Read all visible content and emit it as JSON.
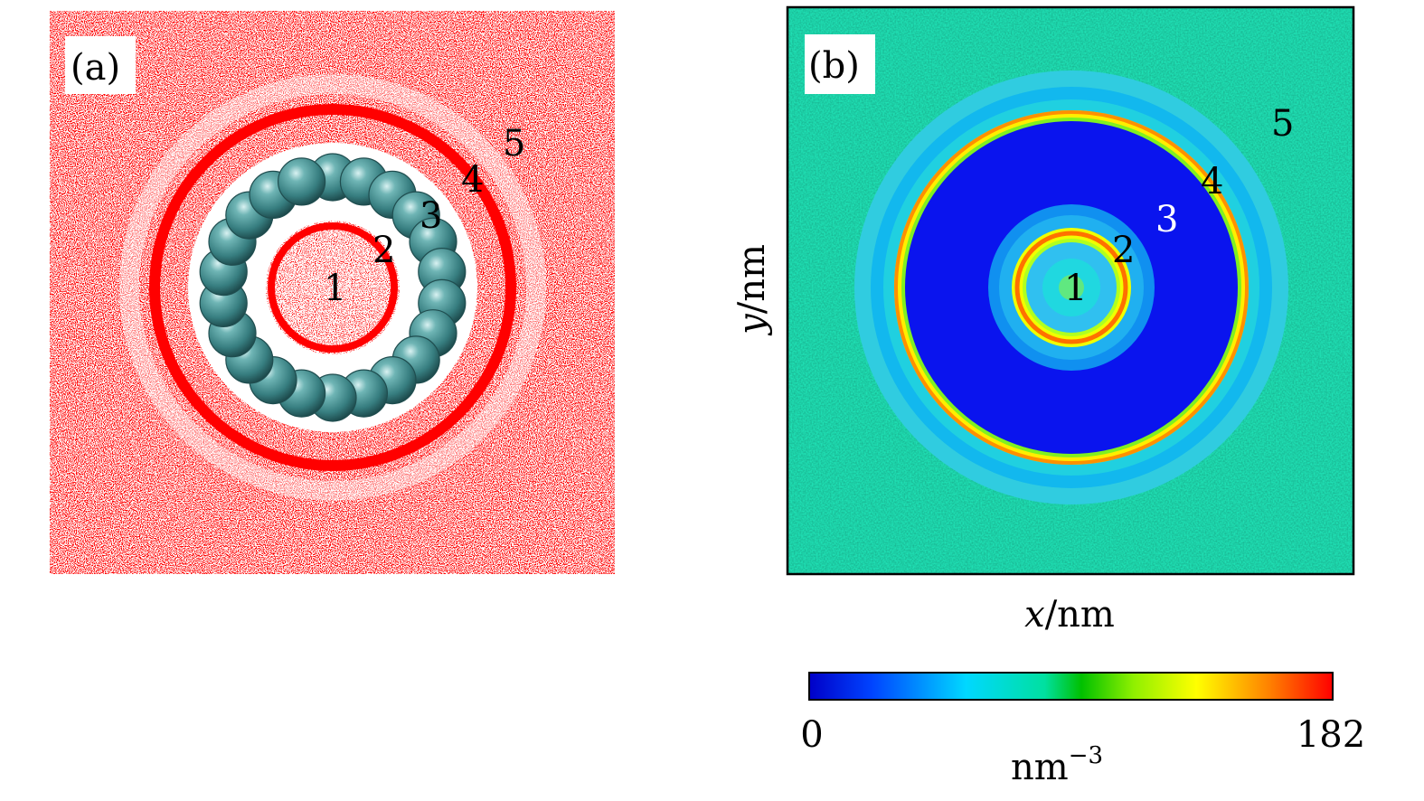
{
  "panel_a": {
    "tag": "(a)",
    "region_labels": [
      "1",
      "2",
      "3",
      "4",
      "5"
    ],
    "colors": {
      "fluid": "#ff0000",
      "void": "#ffffff",
      "bead": "#3d8f8f"
    }
  },
  "panel_b": {
    "tag": "(b)",
    "xlabel_var": "x",
    "xlabel_unit": "/nm",
    "ylabel_var": "y",
    "ylabel_unit": "/nm",
    "region_labels": [
      "1",
      "2",
      "3",
      "4",
      "5"
    ]
  },
  "colorbar": {
    "min_label": "0",
    "max_label": "182",
    "unit_base": "nm",
    "unit_exp": "−3",
    "colormap": "jet"
  },
  "chart_data": {
    "type": "heatmap",
    "xlabel": "x/nm",
    "ylabel": "y/nm",
    "value_range": [
      0,
      182
    ],
    "colorbar_unit": "nm^-3",
    "regions": [
      "1",
      "2",
      "3",
      "4",
      "5"
    ]
  }
}
